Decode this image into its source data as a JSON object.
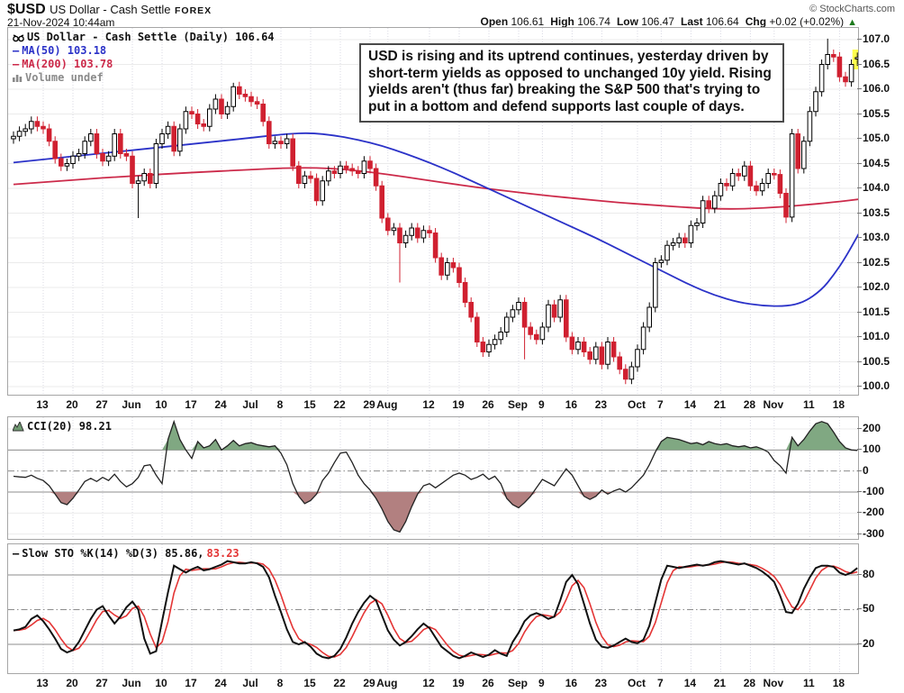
{
  "header": {
    "symbol": "$USD",
    "name": "US Dollar - Cash Settle",
    "exchange": "FOREX",
    "datetime": "21-Nov-2024 10:44am",
    "copyright": "© StockCharts.com",
    "quote": [
      {
        "label": "Open",
        "value": "106.61"
      },
      {
        "label": "High",
        "value": "106.74"
      },
      {
        "label": "Low",
        "value": "106.47"
      },
      {
        "label": "Last",
        "value": "106.64"
      },
      {
        "label": "Chg",
        "value": "+0.02 (+0.02%)"
      }
    ],
    "direction_icon": "up-triangle",
    "direction_color": "#1d7a1d"
  },
  "panels": {
    "main": {
      "legend_title": "US Dollar - Cash Settle (Daily) 106.64",
      "legend_ma50": "MA(50) 103.18",
      "legend_ma200": "MA(200) 103.78",
      "legend_volume": "Volume undef",
      "annotation": "USD is rising and its uptrend continues, yesterday driven by short-term yields as opposed to unchanged 10y yield. Rising yields aren't (thus far) breaking the S&P 500 that's trying to put in a bottom and defend supports last couple of days."
    },
    "cci": {
      "legend": "CCI(20) 98.21"
    },
    "sto": {
      "legend_black": "Slow STO %K(14) %D(3) 85.86,",
      "legend_red": "83.23"
    }
  },
  "colors": {
    "candle_up": "#000000",
    "candle_down": "#d02030",
    "ma50": "#2b32c8",
    "ma200": "#cc2a4a",
    "cci_line": "#222222",
    "cci_fill_up": "#80a882",
    "cci_fill_down": "#b28080",
    "sto_k": "#111111",
    "sto_d": "#e43535",
    "grid_light": "#ebebeb",
    "grid_vert": "#d9d9e3",
    "grid_strong": "#8c8c8c",
    "highlight_yellow": "#ffff4d"
  },
  "chart_data": [
    {
      "type": "candlestick",
      "title": "US Dollar - Cash Settle (Daily)",
      "last": 106.64,
      "ylim": [
        99.85,
        107.25
      ],
      "yticks": [
        107.0,
        106.5,
        106.0,
        105.5,
        105.0,
        104.5,
        104.0,
        103.5,
        103.0,
        102.5,
        102.0,
        101.5,
        101.0,
        100.5,
        100.0
      ],
      "xticks": [
        {
          "t": "13",
          "d": 5
        },
        {
          "t": "20",
          "d": 10
        },
        {
          "t": "27",
          "d": 15
        },
        {
          "t": "Jun",
          "d": 20,
          "m": true
        },
        {
          "t": "10",
          "d": 25
        },
        {
          "t": "17",
          "d": 30
        },
        {
          "t": "24",
          "d": 35
        },
        {
          "t": "Jul",
          "d": 40,
          "m": true
        },
        {
          "t": "8",
          "d": 45
        },
        {
          "t": "15",
          "d": 50
        },
        {
          "t": "22",
          "d": 55
        },
        {
          "t": "29",
          "d": 60
        },
        {
          "t": "Aug",
          "d": 63,
          "m": true
        },
        {
          "t": "12",
          "d": 70
        },
        {
          "t": "19",
          "d": 75
        },
        {
          "t": "26",
          "d": 80
        },
        {
          "t": "Sep",
          "d": 85,
          "m": true
        },
        {
          "t": "9",
          "d": 89
        },
        {
          "t": "16",
          "d": 94
        },
        {
          "t": "23",
          "d": 99
        },
        {
          "t": "Oct",
          "d": 105,
          "m": true
        },
        {
          "t": "7",
          "d": 109
        },
        {
          "t": "14",
          "d": 114
        },
        {
          "t": "21",
          "d": 119
        },
        {
          "t": "28",
          "d": 124
        },
        {
          "t": "Nov",
          "d": 128,
          "m": true
        },
        {
          "t": "11",
          "d": 134
        },
        {
          "t": "18",
          "d": 139
        }
      ],
      "closes": [
        105.05,
        105.15,
        105.2,
        105.35,
        105.25,
        105.2,
        104.95,
        104.6,
        104.45,
        104.5,
        104.65,
        104.7,
        104.95,
        105.1,
        104.7,
        104.55,
        104.65,
        105.1,
        104.7,
        104.65,
        104.1,
        104.15,
        104.3,
        104.1,
        104.9,
        105.1,
        105.25,
        104.75,
        105.2,
        105.55,
        105.5,
        105.3,
        105.25,
        105.6,
        105.8,
        105.5,
        105.65,
        106.05,
        105.9,
        105.85,
        105.75,
        105.7,
        105.35,
        104.9,
        104.95,
        104.9,
        105.0,
        104.45,
        104.1,
        104.25,
        104.2,
        103.75,
        104.15,
        104.35,
        104.3,
        104.45,
        104.4,
        104.35,
        104.3,
        104.55,
        104.4,
        104.05,
        103.4,
        103.15,
        103.2,
        102.9,
        103.05,
        103.2,
        103.0,
        103.15,
        103.1,
        102.6,
        102.25,
        102.5,
        102.4,
        102.1,
        101.7,
        101.4,
        100.9,
        100.7,
        100.85,
        100.95,
        101.1,
        101.4,
        101.55,
        101.7,
        101.2,
        101.05,
        100.95,
        101.2,
        101.65,
        101.4,
        101.75,
        101.0,
        100.75,
        100.9,
        100.7,
        100.55,
        100.8,
        100.45,
        100.9,
        100.6,
        100.35,
        100.15,
        100.4,
        100.75,
        101.2,
        101.6,
        102.5,
        102.55,
        102.85,
        102.9,
        103.0,
        102.9,
        103.25,
        103.3,
        103.75,
        103.6,
        103.85,
        104.1,
        104.05,
        104.3,
        104.25,
        104.45,
        104.05,
        103.95,
        104.1,
        104.3,
        104.28,
        103.9,
        103.42,
        105.1,
        104.4,
        104.95,
        105.55,
        105.95,
        106.5,
        106.7,
        106.65,
        106.25,
        106.15,
        106.5,
        106.64
      ],
      "first_open": 105.0,
      "default_wick": 0.1,
      "wick_overrides": {
        "21": {
          "l": 103.4
        },
        "37": {
          "h": 106.13
        },
        "65": {
          "l": 102.1
        },
        "86": {
          "l": 100.55
        },
        "103": {
          "l": 100.05
        },
        "130": {
          "l": 103.3
        },
        "137": {
          "h": 107.02
        },
        "142": {
          "o": 106.61,
          "h": 106.74,
          "l": 106.47
        }
      },
      "last_candle": {
        "open": 106.61,
        "high": 106.74,
        "low": 106.47,
        "close": 106.64,
        "highlighted": true
      },
      "ma50": {
        "name": "MA(50)",
        "value": 103.18,
        "anchors": [
          [
            0,
            104.52
          ],
          [
            8,
            104.62
          ],
          [
            16,
            104.72
          ],
          [
            24,
            104.82
          ],
          [
            32,
            104.92
          ],
          [
            40,
            105.02
          ],
          [
            46,
            105.1
          ],
          [
            50,
            105.12
          ],
          [
            54,
            105.07
          ],
          [
            58,
            104.98
          ],
          [
            62,
            104.86
          ],
          [
            66,
            104.7
          ],
          [
            70,
            104.52
          ],
          [
            74,
            104.32
          ],
          [
            78,
            104.1
          ],
          [
            82,
            103.88
          ],
          [
            86,
            103.66
          ],
          [
            90,
            103.44
          ],
          [
            94,
            103.22
          ],
          [
            98,
            103.0
          ],
          [
            102,
            102.76
          ],
          [
            106,
            102.52
          ],
          [
            110,
            102.28
          ],
          [
            114,
            102.04
          ],
          [
            118,
            101.84
          ],
          [
            122,
            101.7
          ],
          [
            126,
            101.63
          ],
          [
            130,
            101.62
          ],
          [
            133,
            101.7
          ],
          [
            136,
            101.95
          ],
          [
            138,
            102.25
          ],
          [
            140,
            102.6
          ],
          [
            143,
            103.25
          ]
        ]
      },
      "ma200": {
        "name": "MA(200)",
        "value": 103.78,
        "anchors": [
          [
            0,
            104.08
          ],
          [
            10,
            104.17
          ],
          [
            20,
            104.25
          ],
          [
            30,
            104.32
          ],
          [
            40,
            104.38
          ],
          [
            48,
            104.42
          ],
          [
            54,
            104.4
          ],
          [
            60,
            104.33
          ],
          [
            66,
            104.23
          ],
          [
            72,
            104.12
          ],
          [
            78,
            104.02
          ],
          [
            84,
            103.93
          ],
          [
            90,
            103.85
          ],
          [
            96,
            103.78
          ],
          [
            102,
            103.71
          ],
          [
            108,
            103.66
          ],
          [
            114,
            103.61
          ],
          [
            120,
            103.58
          ],
          [
            126,
            103.6
          ],
          [
            132,
            103.65
          ],
          [
            138,
            103.72
          ],
          [
            143,
            103.79
          ]
        ]
      },
      "volume": "undef"
    },
    {
      "type": "line",
      "title": "CCI(20)",
      "last": 98.21,
      "ylim": [
        -340,
        255
      ],
      "yticks": [
        200,
        100,
        0,
        -100,
        -200,
        -300
      ],
      "band_upper": 100,
      "band_lower": -100,
      "zero_line_style": "dash-dot",
      "values": [
        -25,
        -28,
        -30,
        -20,
        -35,
        -45,
        -70,
        -110,
        -150,
        -160,
        -130,
        -90,
        -50,
        -35,
        -50,
        -30,
        -45,
        -15,
        -50,
        -75,
        -60,
        -30,
        25,
        30,
        -20,
        -60,
        150,
        235,
        150,
        100,
        60,
        140,
        110,
        120,
        150,
        100,
        120,
        145,
        120,
        130,
        135,
        125,
        120,
        115,
        120,
        85,
        30,
        -60,
        -120,
        -155,
        -140,
        -110,
        -45,
        -10,
        40,
        85,
        90,
        40,
        -20,
        -60,
        -90,
        -130,
        -180,
        -240,
        -280,
        -290,
        -240,
        -170,
        -110,
        -70,
        -60,
        -80,
        -60,
        -40,
        -20,
        -10,
        -20,
        -40,
        -30,
        -15,
        -40,
        -25,
        -60,
        -130,
        -160,
        -175,
        -150,
        -120,
        -80,
        -40,
        -55,
        -70,
        -30,
        10,
        -20,
        -70,
        -120,
        -135,
        -120,
        -90,
        -110,
        -95,
        -85,
        -100,
        -80,
        -50,
        -20,
        30,
        90,
        140,
        160,
        155,
        150,
        140,
        130,
        135,
        125,
        140,
        130,
        125,
        130,
        120,
        115,
        120,
        110,
        115,
        105,
        90,
        50,
        25,
        -10,
        160,
        120,
        150,
        190,
        225,
        235,
        225,
        185,
        140,
        110,
        100,
        98
      ]
    },
    {
      "type": "line",
      "title": "Slow STO %K(14) %D(3)",
      "k_last": 85.86,
      "d_last": 83.23,
      "ylim": [
        -3,
        112
      ],
      "yticks": [
        80,
        50,
        20
      ],
      "mid_line_style": "dash-dot",
      "d_smoothing": 3,
      "k_values": [
        32,
        33,
        35,
        42,
        45,
        40,
        33,
        25,
        16,
        13,
        15,
        22,
        32,
        42,
        50,
        53,
        45,
        38,
        44,
        52,
        57,
        50,
        25,
        12,
        14,
        40,
        65,
        88,
        85,
        82,
        85,
        87,
        84,
        85,
        87,
        89,
        92,
        91,
        90,
        90,
        91,
        90,
        87,
        78,
        62,
        48,
        33,
        22,
        20,
        22,
        18,
        12,
        9,
        8,
        10,
        16,
        26,
        38,
        48,
        56,
        62,
        58,
        45,
        32,
        24,
        19,
        22,
        27,
        33,
        38,
        34,
        26,
        18,
        14,
        10,
        8,
        10,
        13,
        11,
        9,
        11,
        15,
        12,
        10,
        22,
        30,
        40,
        45,
        47,
        45,
        42,
        44,
        58,
        74,
        80,
        72,
        55,
        38,
        24,
        18,
        17,
        19,
        22,
        25,
        22,
        21,
        24,
        36,
        56,
        76,
        88,
        87,
        86,
        87,
        88,
        89,
        88,
        89,
        91,
        92,
        91,
        90,
        89,
        90,
        88,
        86,
        83,
        79,
        74,
        62,
        48,
        47,
        55,
        68,
        78,
        86,
        88,
        88,
        87,
        82,
        80,
        82,
        86
      ]
    }
  ]
}
